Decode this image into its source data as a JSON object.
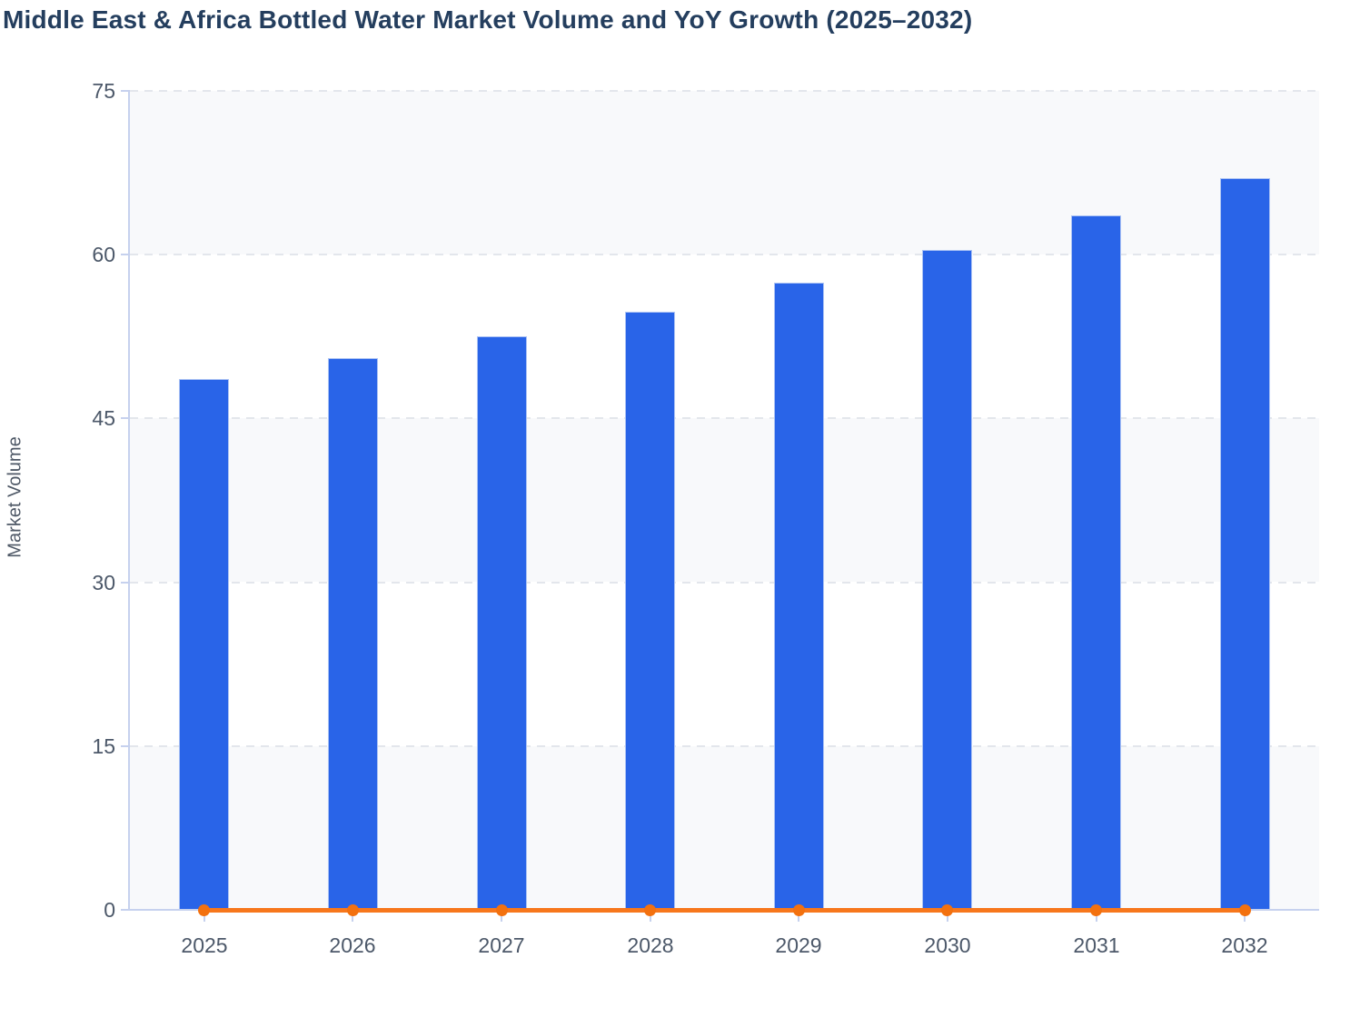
{
  "page": {
    "background": "#ffffff"
  },
  "chart_data": {
    "type": "bar",
    "combo": "bar + line overlay",
    "title": "Middle East & Africa Bottled Water Market Volume and YoY Growth (2025–2032)",
    "xlabel": "",
    "ylabel": "Market Volume",
    "categories": [
      "2025",
      "2026",
      "2027",
      "2028",
      "2029",
      "2030",
      "2031",
      "2032"
    ],
    "series": [
      {
        "name": "Market Volume",
        "type": "bar",
        "color": "#2964e8",
        "values": [
          48.6,
          50.5,
          52.5,
          54.8,
          57.4,
          60.4,
          63.6,
          67.0
        ]
      },
      {
        "name": "YoY Growth",
        "type": "line",
        "color": "#f7771c",
        "marker_color": "#f3710f",
        "values": [
          0,
          0,
          0,
          0,
          0,
          0,
          0,
          0
        ],
        "note": "YoY growth line renders flat at ~0 on the shared Market Volume axis; no growth values are labeled in the image"
      }
    ],
    "ylim": [
      0,
      75
    ],
    "yticks": [
      0,
      15,
      30,
      45,
      60,
      75
    ],
    "grid": "horizontal dashed gridlines at each y tick",
    "band_shading": "alternating 15-unit horizontal bands shaded: 0–15, 30–45, 60–75",
    "legend": "none"
  },
  "colors": {
    "background": "#ffffff",
    "title": "#243e5e",
    "axis_line": "#c6d1ee",
    "gridline": "#e3e6ec",
    "band": "#f8f9fb",
    "tick_label": "#4c5869",
    "axis_title": "#4e5866",
    "bar": "#2964e8",
    "bar_border": "#c3d4f6",
    "line": "#f7771c",
    "marker": "#f3710f"
  }
}
